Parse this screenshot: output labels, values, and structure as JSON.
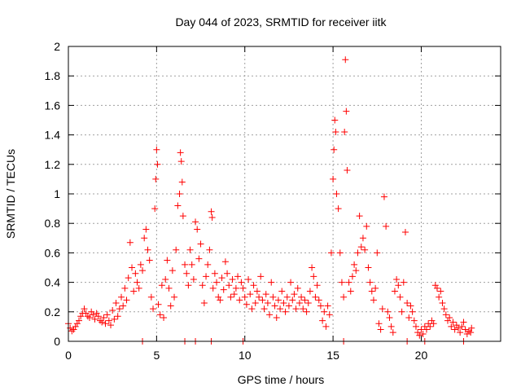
{
  "chart_data": {
    "type": "scatter",
    "title": "Day 044 of 2023, SRMTID for receiver iitk",
    "xlabel": "GPS time / hours",
    "ylabel": "SRMTID / TECUs",
    "xlim": [
      0,
      24.5
    ],
    "ylim": [
      0,
      2
    ],
    "xticks": [
      0,
      5,
      10,
      15,
      20
    ],
    "xtick_labels": [
      "0",
      "5",
      "10",
      "15",
      "20"
    ],
    "yticks": [
      0,
      0.2,
      0.4,
      0.6,
      0.8,
      1,
      1.2,
      1.4,
      1.6,
      1.8,
      2
    ],
    "ytick_labels": [
      "0",
      "0.2",
      "0.4",
      "0.6",
      "0.8",
      "1",
      "1.2",
      "1.4",
      "1.6",
      "1.8",
      "2"
    ],
    "grid": true,
    "marker": "+",
    "marker_color": "#ff0000",
    "series": [
      {
        "name": "SRMTID",
        "points": [
          [
            0.0,
            0.12
          ],
          [
            0.1,
            0.09
          ],
          [
            0.2,
            0.07
          ],
          [
            0.3,
            0.08
          ],
          [
            0.4,
            0.1
          ],
          [
            0.5,
            0.12
          ],
          [
            0.6,
            0.14
          ],
          [
            0.7,
            0.17
          ],
          [
            0.8,
            0.19
          ],
          [
            0.9,
            0.22
          ],
          [
            1.0,
            0.19
          ],
          [
            1.1,
            0.17
          ],
          [
            1.2,
            0.16
          ],
          [
            1.3,
            0.2
          ],
          [
            1.4,
            0.18
          ],
          [
            1.5,
            0.15
          ],
          [
            1.6,
            0.19
          ],
          [
            1.7,
            0.17
          ],
          [
            1.8,
            0.14
          ],
          [
            1.9,
            0.13
          ],
          [
            2.0,
            0.16
          ],
          [
            2.1,
            0.12
          ],
          [
            2.2,
            0.18
          ],
          [
            2.3,
            0.14
          ],
          [
            2.4,
            0.11
          ],
          [
            2.5,
            0.21
          ],
          [
            2.6,
            0.15
          ],
          [
            2.7,
            0.26
          ],
          [
            2.8,
            0.17
          ],
          [
            2.9,
            0.22
          ],
          [
            3.0,
            0.3
          ],
          [
            3.1,
            0.24
          ],
          [
            3.2,
            0.36
          ],
          [
            3.3,
            0.28
          ],
          [
            3.4,
            0.43
          ],
          [
            3.5,
            0.67
          ],
          [
            3.6,
            0.5
          ],
          [
            3.7,
            0.34
          ],
          [
            3.8,
            0.46
          ],
          [
            3.9,
            0.4
          ],
          [
            4.0,
            0.36
          ],
          [
            4.1,
            0.52
          ],
          [
            4.2,
            0.48
          ],
          [
            4.3,
            0.7
          ],
          [
            4.4,
            0.76
          ],
          [
            4.5,
            0.62
          ],
          [
            4.6,
            0.55
          ],
          [
            4.7,
            0.3
          ],
          [
            4.8,
            0.22
          ],
          [
            4.9,
            0.9
          ],
          [
            4.95,
            1.1
          ],
          [
            5.0,
            1.3
          ],
          [
            5.05,
            1.2
          ],
          [
            5.1,
            0.25
          ],
          [
            5.2,
            0.18
          ],
          [
            5.3,
            0.38
          ],
          [
            5.4,
            0.16
          ],
          [
            5.5,
            0.42
          ],
          [
            5.6,
            0.55
          ],
          [
            5.7,
            0.36
          ],
          [
            5.8,
            0.24
          ],
          [
            5.9,
            0.48
          ],
          [
            6.0,
            0.3
          ],
          [
            6.1,
            0.62
          ],
          [
            6.2,
            0.92
          ],
          [
            6.3,
            1.0
          ],
          [
            6.35,
            1.28
          ],
          [
            6.4,
            1.22
          ],
          [
            6.45,
            1.08
          ],
          [
            6.5,
            0.85
          ],
          [
            6.6,
            0.52
          ],
          [
            6.7,
            0.46
          ],
          [
            6.8,
            0.38
          ],
          [
            6.9,
            0.62
          ],
          [
            7.0,
            0.52
          ],
          [
            7.1,
            0.42
          ],
          [
            7.2,
            0.81
          ],
          [
            7.3,
            0.76
          ],
          [
            7.4,
            0.56
          ],
          [
            7.5,
            0.66
          ],
          [
            7.6,
            0.38
          ],
          [
            7.7,
            0.26
          ],
          [
            7.8,
            0.44
          ],
          [
            7.9,
            0.52
          ],
          [
            8.0,
            0.62
          ],
          [
            8.1,
            0.88
          ],
          [
            8.15,
            0.84
          ],
          [
            8.2,
            0.36
          ],
          [
            8.3,
            0.46
          ],
          [
            8.4,
            0.4
          ],
          [
            8.5,
            0.3
          ],
          [
            8.6,
            0.28
          ],
          [
            8.7,
            0.43
          ],
          [
            8.8,
            0.35
          ],
          [
            8.9,
            0.54
          ],
          [
            9.0,
            0.46
          ],
          [
            9.1,
            0.38
          ],
          [
            9.2,
            0.3
          ],
          [
            9.3,
            0.42
          ],
          [
            9.4,
            0.32
          ],
          [
            9.5,
            0.36
          ],
          [
            9.6,
            0.44
          ],
          [
            9.7,
            0.28
          ],
          [
            9.8,
            0.4
          ],
          [
            9.9,
            0.36
          ],
          [
            10.0,
            0.3
          ],
          [
            10.1,
            0.25
          ],
          [
            10.2,
            0.42
          ],
          [
            10.3,
            0.32
          ],
          [
            10.4,
            0.22
          ],
          [
            10.5,
            0.38
          ],
          [
            10.6,
            0.26
          ],
          [
            10.7,
            0.34
          ],
          [
            10.8,
            0.3
          ],
          [
            10.9,
            0.44
          ],
          [
            11.0,
            0.28
          ],
          [
            11.1,
            0.22
          ],
          [
            11.2,
            0.32
          ],
          [
            11.3,
            0.26
          ],
          [
            11.4,
            0.18
          ],
          [
            11.5,
            0.4
          ],
          [
            11.6,
            0.3
          ],
          [
            11.7,
            0.24
          ],
          [
            11.8,
            0.16
          ],
          [
            11.9,
            0.28
          ],
          [
            12.0,
            0.22
          ],
          [
            12.1,
            0.34
          ],
          [
            12.2,
            0.26
          ],
          [
            12.3,
            0.2
          ],
          [
            12.4,
            0.3
          ],
          [
            12.5,
            0.24
          ],
          [
            12.6,
            0.4
          ],
          [
            12.7,
            0.28
          ],
          [
            12.8,
            0.32
          ],
          [
            12.9,
            0.22
          ],
          [
            13.0,
            0.36
          ],
          [
            13.1,
            0.26
          ],
          [
            13.2,
            0.3
          ],
          [
            13.3,
            0.22
          ],
          [
            13.4,
            0.28
          ],
          [
            13.5,
            0.2
          ],
          [
            13.6,
            0.26
          ],
          [
            13.7,
            0.34
          ],
          [
            13.8,
            0.5
          ],
          [
            13.9,
            0.44
          ],
          [
            14.0,
            0.3
          ],
          [
            14.1,
            0.38
          ],
          [
            14.2,
            0.28
          ],
          [
            14.3,
            0.24
          ],
          [
            14.4,
            0.14
          ],
          [
            14.5,
            0.2
          ],
          [
            14.6,
            0.1
          ],
          [
            14.7,
            0.24
          ],
          [
            14.8,
            0.18
          ],
          [
            14.9,
            0.6
          ],
          [
            15.0,
            1.1
          ],
          [
            15.05,
            1.3
          ],
          [
            15.1,
            1.5
          ],
          [
            15.15,
            1.42
          ],
          [
            15.2,
            1.0
          ],
          [
            15.3,
            0.9
          ],
          [
            15.4,
            0.6
          ],
          [
            15.5,
            0.4
          ],
          [
            15.6,
            0.3
          ],
          [
            15.65,
            1.42
          ],
          [
            15.7,
            1.91
          ],
          [
            15.75,
            1.56
          ],
          [
            15.8,
            1.16
          ],
          [
            15.9,
            0.4
          ],
          [
            16.0,
            0.34
          ],
          [
            16.1,
            0.44
          ],
          [
            16.2,
            0.52
          ],
          [
            16.3,
            0.48
          ],
          [
            16.4,
            0.6
          ],
          [
            16.5,
            0.85
          ],
          [
            16.6,
            0.64
          ],
          [
            16.7,
            0.7
          ],
          [
            16.8,
            0.62
          ],
          [
            16.9,
            0.78
          ],
          [
            17.0,
            0.5
          ],
          [
            17.1,
            0.4
          ],
          [
            17.2,
            0.34
          ],
          [
            17.3,
            0.28
          ],
          [
            17.4,
            0.36
          ],
          [
            17.5,
            0.6
          ],
          [
            17.6,
            0.12
          ],
          [
            17.7,
            0.08
          ],
          [
            17.8,
            0.22
          ],
          [
            17.9,
            0.98
          ],
          [
            18.0,
            0.78
          ],
          [
            18.1,
            0.2
          ],
          [
            18.2,
            0.16
          ],
          [
            18.3,
            0.1
          ],
          [
            18.4,
            0.06
          ],
          [
            18.5,
            0.34
          ],
          [
            18.6,
            0.42
          ],
          [
            18.7,
            0.38
          ],
          [
            18.8,
            0.3
          ],
          [
            18.9,
            0.2
          ],
          [
            19.0,
            0.4
          ],
          [
            19.1,
            0.74
          ],
          [
            19.2,
            0.26
          ],
          [
            19.3,
            0.16
          ],
          [
            19.4,
            0.24
          ],
          [
            19.5,
            0.2
          ],
          [
            19.6,
            0.14
          ],
          [
            19.7,
            0.1
          ],
          [
            19.8,
            0.06
          ],
          [
            19.9,
            0.04
          ],
          [
            20.0,
            0.08
          ],
          [
            20.1,
            0.05
          ],
          [
            20.2,
            0.1
          ],
          [
            20.3,
            0.08
          ],
          [
            20.4,
            0.12
          ],
          [
            20.5,
            0.1
          ],
          [
            20.6,
            0.14
          ],
          [
            20.7,
            0.12
          ],
          [
            20.8,
            0.38
          ],
          [
            20.9,
            0.36
          ],
          [
            21.0,
            0.3
          ],
          [
            21.1,
            0.34
          ],
          [
            21.2,
            0.26
          ],
          [
            21.3,
            0.22
          ],
          [
            21.4,
            0.18
          ],
          [
            21.5,
            0.14
          ],
          [
            21.6,
            0.16
          ],
          [
            21.7,
            0.1
          ],
          [
            21.8,
            0.13
          ],
          [
            21.9,
            0.08
          ],
          [
            22.0,
            0.11
          ],
          [
            22.1,
            0.09
          ],
          [
            22.2,
            0.06
          ],
          [
            22.3,
            0.1
          ],
          [
            22.4,
            0.13
          ],
          [
            22.5,
            0.08
          ],
          [
            22.6,
            0.05
          ],
          [
            22.7,
            0.07
          ],
          [
            22.8,
            0.06
          ],
          [
            22.85,
            0.09
          ],
          [
            4.2,
            0.0
          ],
          [
            6.6,
            0.0
          ],
          [
            7.2,
            0.0
          ],
          [
            8.1,
            0.0
          ],
          [
            9.9,
            0.0
          ],
          [
            15.6,
            0.0
          ],
          [
            19.2,
            0.0
          ],
          [
            20.2,
            0.0
          ],
          [
            22.4,
            0.0
          ]
        ]
      }
    ]
  }
}
